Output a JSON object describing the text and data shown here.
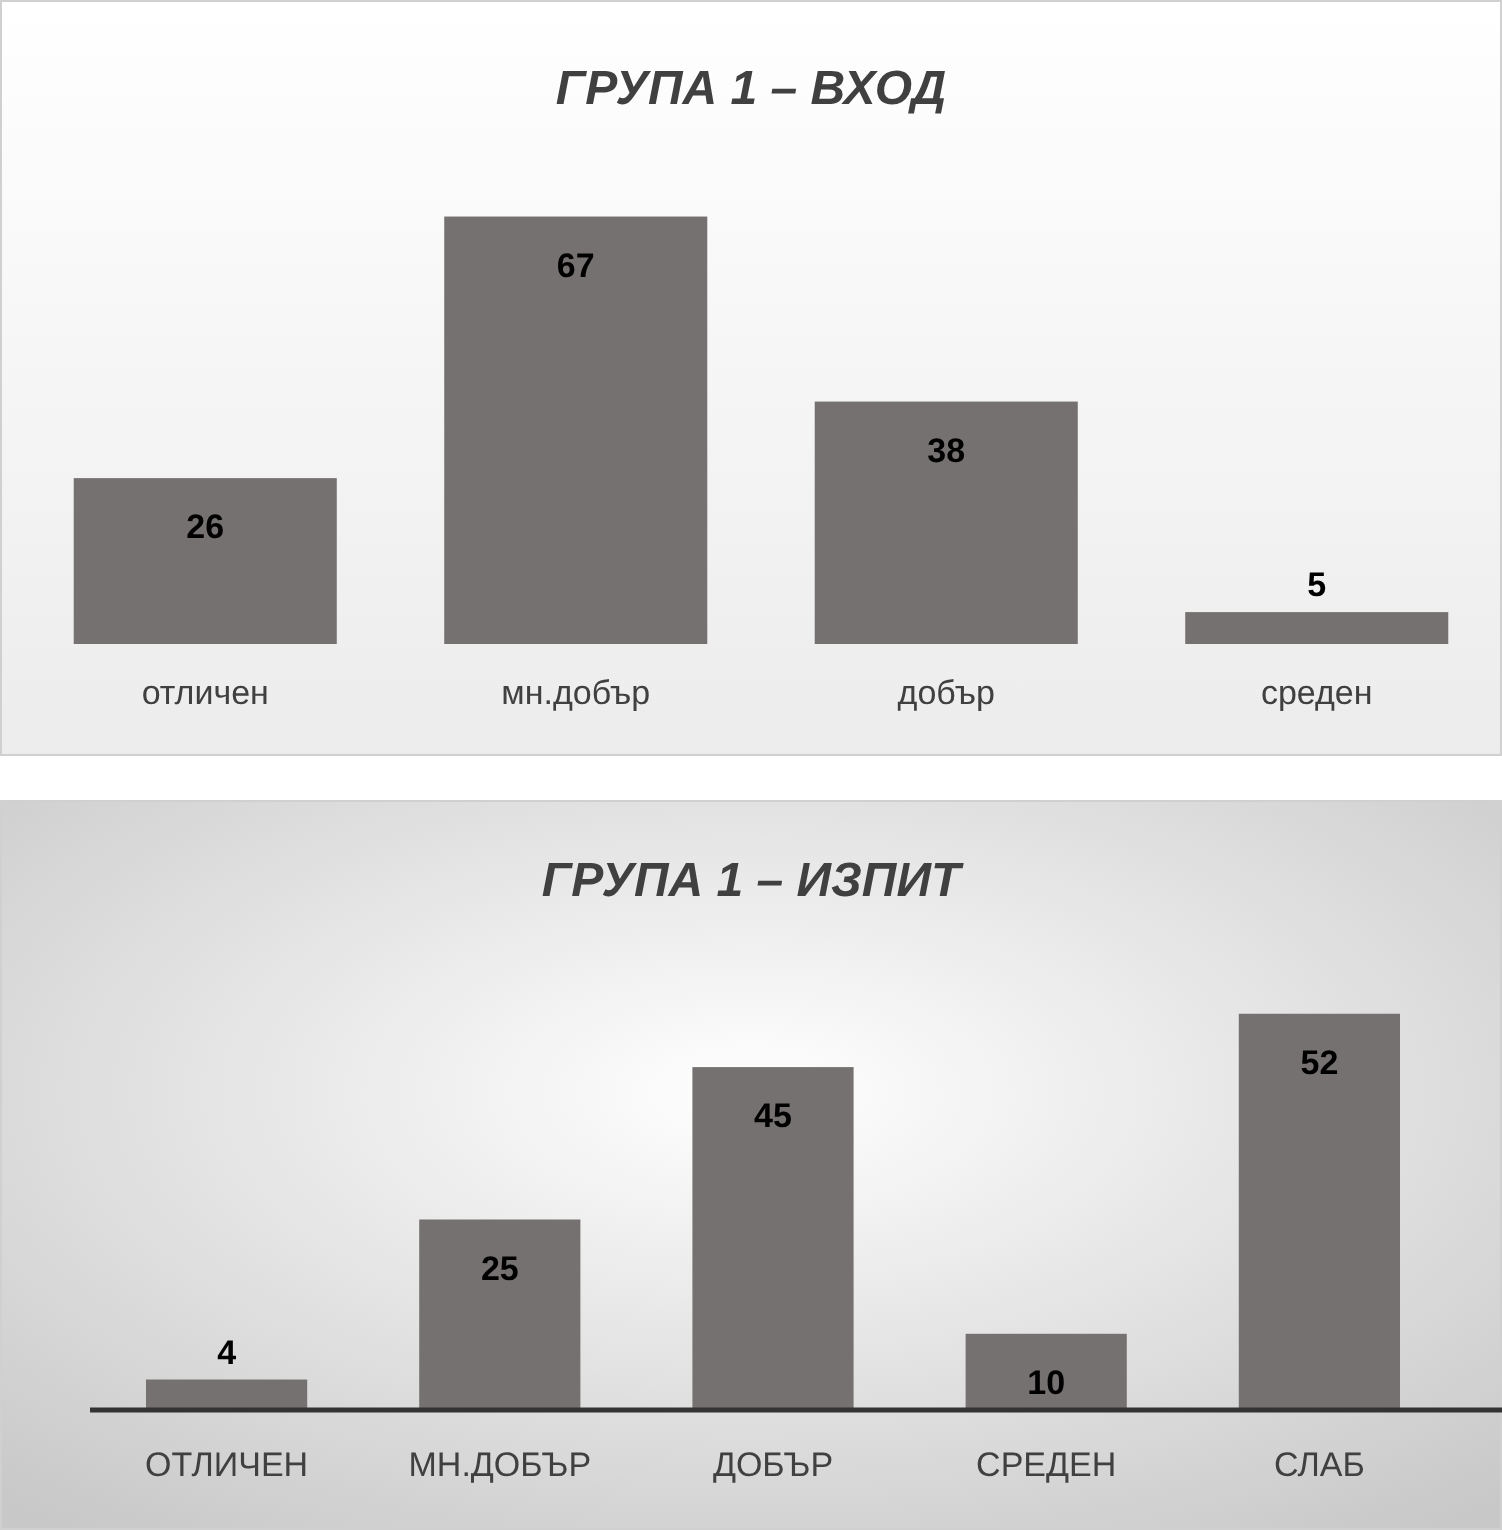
{
  "chart_data": [
    {
      "type": "bar",
      "title": "ГРУПА 1 – ВХОД",
      "categories": [
        "отличен",
        "мн.добър",
        "добър",
        "среден"
      ],
      "series": [
        {
          "color": "#767171",
          "values": [
            26,
            67,
            38,
            5
          ]
        }
      ],
      "data_labels": true
    },
    {
      "type": "bar",
      "title": "ГРУПА 1 – ИЗПИТ",
      "categories": [
        "ОТЛИЧЕН",
        "МН.ДОБЪР",
        "ДОБЪР",
        "СРЕДЕН",
        "СЛАБ"
      ],
      "series": [
        {
          "color": "#767171",
          "values": [
            4,
            25,
            45,
            10,
            52
          ]
        }
      ],
      "data_labels": true
    }
  ]
}
